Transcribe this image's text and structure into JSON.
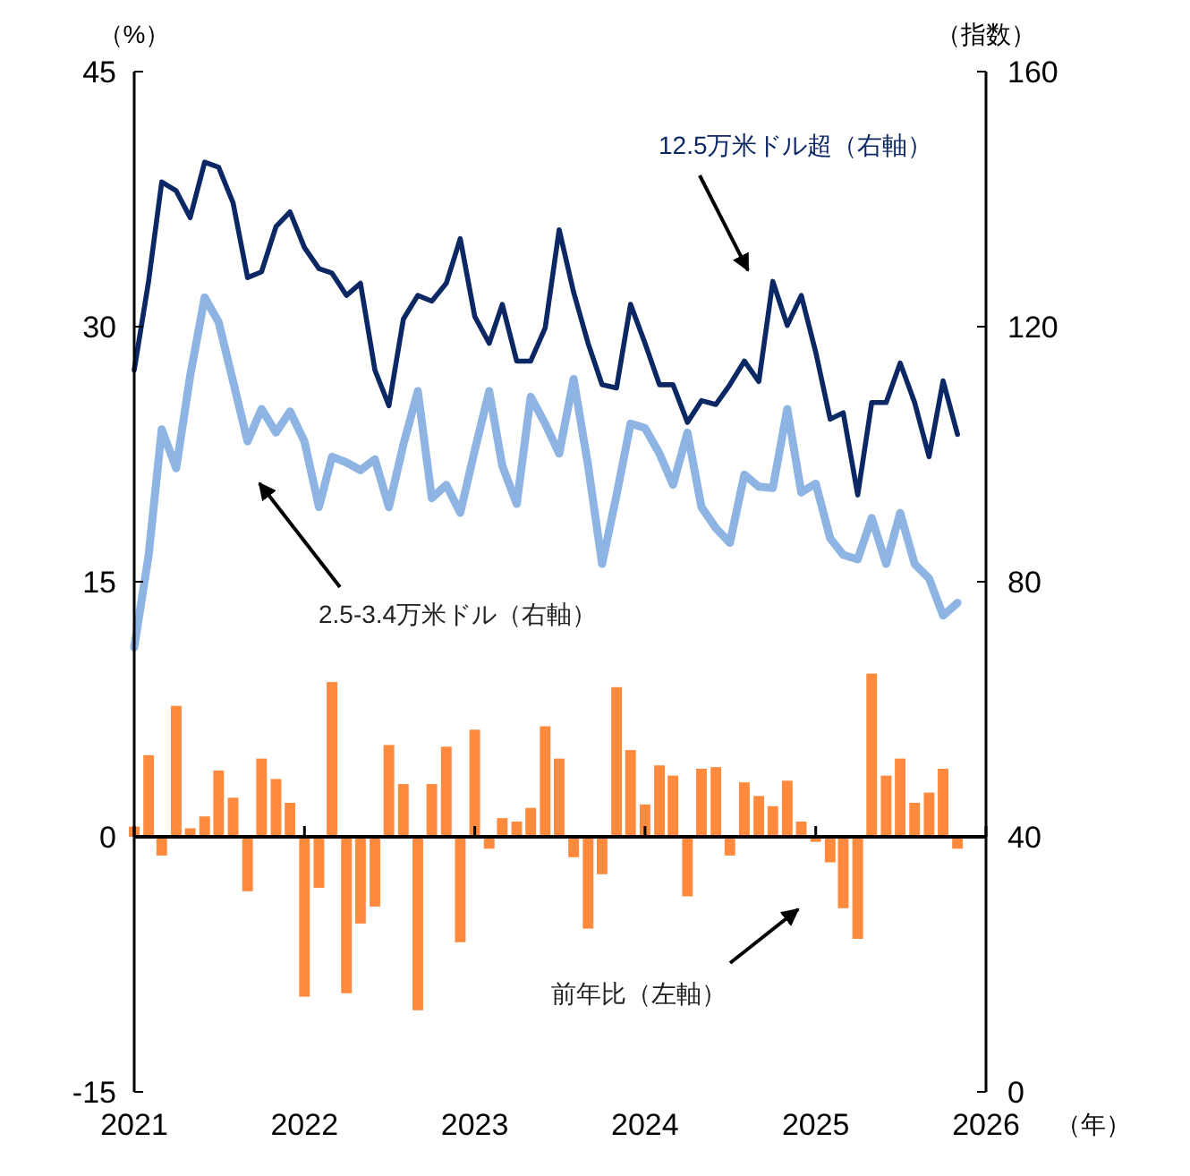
{
  "chart_data": {
    "type": "line",
    "xlabel": "（年）",
    "ylabel": "（%）",
    "y2label": "（指数）",
    "x": [
      "2021-01",
      "2021-02",
      "2021-03",
      "2021-04",
      "2021-05",
      "2021-06",
      "2021-07",
      "2021-08",
      "2021-09",
      "2021-10",
      "2021-11",
      "2021-12",
      "2022-01",
      "2022-02",
      "2022-03",
      "2022-04",
      "2022-05",
      "2022-06",
      "2022-07",
      "2022-08",
      "2022-09",
      "2022-10",
      "2022-11",
      "2022-12",
      "2023-01",
      "2023-02",
      "2023-03",
      "2023-04",
      "2023-05",
      "2023-06",
      "2023-07",
      "2023-08",
      "2023-09",
      "2023-10",
      "2023-11",
      "2023-12",
      "2024-01",
      "2024-02",
      "2024-03",
      "2024-04",
      "2024-05",
      "2024-06",
      "2024-07",
      "2024-08",
      "2024-09",
      "2024-10",
      "2024-11",
      "2024-12",
      "2025-01",
      "2025-02",
      "2025-03",
      "2025-04",
      "2025-05",
      "2025-06",
      "2025-07",
      "2025-08",
      "2025-09",
      "2025-10",
      "2025-11"
    ],
    "xlim": [
      "2021-01",
      "2026-01"
    ],
    "xticks": [
      "2021",
      "2022",
      "2023",
      "2024",
      "2025",
      "2026"
    ],
    "ylim": [
      -15,
      45
    ],
    "yticks": [
      -15,
      0,
      15,
      30,
      45
    ],
    "y2lim": [
      0,
      160
    ],
    "y2ticks": [
      0,
      40,
      80,
      120,
      160
    ],
    "series": [
      {
        "name": "前年比（左軸）",
        "type": "bar",
        "color": "#ff8a3d",
        "values": [
          0.6,
          4.8,
          -1.1,
          7.7,
          0.5,
          1.2,
          3.9,
          2.3,
          -3.2,
          4.6,
          3.4,
          2.0,
          -9.4,
          -3.0,
          9.1,
          -9.2,
          -5.1,
          -4.1,
          5.4,
          3.1,
          -10.2,
          3.1,
          5.3,
          -6.2,
          6.3,
          -0.7,
          1.1,
          0.9,
          1.7,
          6.5,
          4.6,
          -1.2,
          -5.4,
          -2.2,
          8.8,
          5.1,
          1.9,
          4.2,
          3.6,
          -3.5,
          4.0,
          4.1,
          -1.1,
          3.2,
          2.4,
          1.8,
          3.3,
          0.9,
          -0.3,
          -1.5,
          -4.2,
          -6.0,
          9.6,
          3.6,
          4.6,
          2.0,
          2.6,
          4.0,
          -0.7
        ]
      },
      {
        "name": "12.5万米ドル超（右軸）",
        "axis": "y2",
        "color": "#0b2764",
        "values": [
          113.2,
          127.2,
          142.7,
          141.3,
          137.1,
          145.8,
          145.0,
          139.4,
          127.7,
          128.6,
          135.7,
          138.0,
          132.4,
          129.1,
          128.4,
          124.9,
          126.8,
          113.2,
          107.6,
          121.2,
          124.9,
          124.0,
          126.8,
          133.8,
          121.6,
          117.4,
          123.5,
          114.6,
          114.6,
          119.8,
          135.2,
          125.4,
          117.4,
          110.9,
          110.4,
          123.5,
          117.4,
          110.9,
          110.9,
          105.0,
          108.4,
          107.8,
          110.9,
          114.6,
          111.4,
          127.1,
          120.2,
          124.9,
          116.0,
          105.5,
          106.5,
          93.6,
          108.1,
          108.1,
          114.3,
          108.1,
          99.6,
          111.5,
          103.1
        ]
      },
      {
        "name": "2.5-3.4万米ドル（右軸）",
        "axis": "y2",
        "color": "#8db4e2",
        "values": [
          69.7,
          84.2,
          103.9,
          97.8,
          112.3,
          124.6,
          120.7,
          111.4,
          102.0,
          107.1,
          103.4,
          106.7,
          102.0,
          91.7,
          99.6,
          98.7,
          97.5,
          99.2,
          91.7,
          101.5,
          109.9,
          93.1,
          95.2,
          90.8,
          100.6,
          109.9,
          98.2,
          92.2,
          109.0,
          104.8,
          100.1,
          111.8,
          98.2,
          82.8,
          93.6,
          104.8,
          104.1,
          100.1,
          95.2,
          103.4,
          91.7,
          88.4,
          86.1,
          96.8,
          94.9,
          94.7,
          107.1,
          94.0,
          95.4,
          86.8,
          84.2,
          83.5,
          90.0,
          82.8,
          90.8,
          82.8,
          80.5,
          74.7,
          76.7
        ]
      }
    ]
  }
}
